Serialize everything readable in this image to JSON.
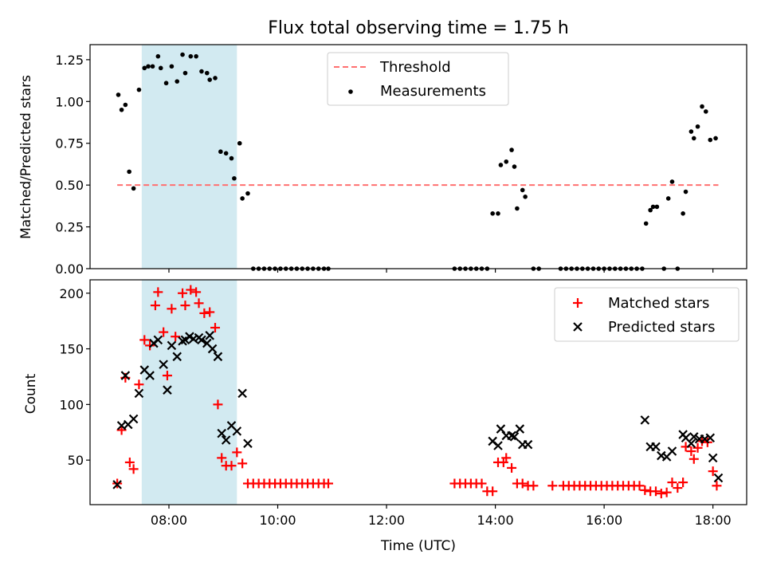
{
  "figure": {
    "title": "Flux total observing time = 1.75 h"
  },
  "colors": {
    "highlight": "#add8e6",
    "threshold": "#ff7070",
    "measurement": "#000000",
    "matched": "#ff0000",
    "predicted": "#000000"
  },
  "chart_data": [
    {
      "type": "scatter",
      "title": "Flux total observing time = 1.75 h",
      "xlabel": "",
      "ylabel": "Matched/Predicted stars",
      "x_unit": "hours UTC",
      "xlim": [
        6.55,
        18.62
      ],
      "ylim": [
        0,
        1.34
      ],
      "x_tick_values": [
        8,
        10,
        12,
        14,
        16,
        18
      ],
      "x_tick_labels": [
        "",
        "",
        "",
        "",
        "",
        ""
      ],
      "y_ticks": [
        0.0,
        0.25,
        0.5,
        0.75,
        1.0,
        1.25
      ],
      "y_tick_labels": [
        "0.00",
        "0.25",
        "0.50",
        "0.75",
        "1.00",
        "1.25"
      ],
      "grid": false,
      "legend": "top-center",
      "highlight_span": [
        7.5,
        9.25
      ],
      "threshold": {
        "name": "Threshold",
        "y": 0.5,
        "x_range": [
          7.05,
          18.1
        ]
      },
      "series": [
        {
          "name": "Measurements",
          "marker": "dot",
          "points": [
            [
              7.07,
              1.04
            ],
            [
              7.13,
              0.95
            ],
            [
              7.2,
              0.98
            ],
            [
              7.27,
              0.58
            ],
            [
              7.35,
              0.48
            ],
            [
              7.45,
              1.07
            ],
            [
              7.55,
              1.2
            ],
            [
              7.62,
              1.21
            ],
            [
              7.7,
              1.21
            ],
            [
              7.8,
              1.27
            ],
            [
              7.85,
              1.2
            ],
            [
              7.95,
              1.11
            ],
            [
              8.05,
              1.21
            ],
            [
              8.15,
              1.12
            ],
            [
              8.25,
              1.28
            ],
            [
              8.3,
              1.17
            ],
            [
              8.4,
              1.27
            ],
            [
              8.5,
              1.27
            ],
            [
              8.6,
              1.18
            ],
            [
              8.7,
              1.17
            ],
            [
              8.75,
              1.13
            ],
            [
              8.85,
              1.14
            ],
            [
              8.95,
              0.7
            ],
            [
              9.05,
              0.69
            ],
            [
              9.15,
              0.66
            ],
            [
              9.2,
              0.54
            ],
            [
              9.3,
              0.75
            ],
            [
              9.35,
              0.42
            ],
            [
              9.45,
              0.45
            ],
            [
              9.55,
              0.0
            ],
            [
              9.65,
              0.0
            ],
            [
              9.75,
              0.0
            ],
            [
              9.85,
              0.0
            ],
            [
              9.95,
              0.0
            ],
            [
              10.05,
              0.0
            ],
            [
              10.15,
              0.0
            ],
            [
              10.25,
              0.0
            ],
            [
              10.35,
              0.0
            ],
            [
              10.45,
              0.0
            ],
            [
              10.55,
              0.0
            ],
            [
              10.65,
              0.0
            ],
            [
              10.75,
              0.0
            ],
            [
              10.85,
              0.0
            ],
            [
              10.93,
              0.0
            ],
            [
              13.25,
              0.0
            ],
            [
              13.35,
              0.0
            ],
            [
              13.45,
              0.0
            ],
            [
              13.55,
              0.0
            ],
            [
              13.65,
              0.0
            ],
            [
              13.75,
              0.0
            ],
            [
              13.85,
              0.0
            ],
            [
              13.95,
              0.33
            ],
            [
              14.05,
              0.33
            ],
            [
              14.1,
              0.62
            ],
            [
              14.2,
              0.64
            ],
            [
              14.3,
              0.71
            ],
            [
              14.35,
              0.61
            ],
            [
              14.4,
              0.36
            ],
            [
              14.5,
              0.47
            ],
            [
              14.55,
              0.43
            ],
            [
              14.7,
              0.0
            ],
            [
              14.8,
              0.0
            ],
            [
              15.2,
              0.0
            ],
            [
              15.3,
              0.0
            ],
            [
              15.4,
              0.0
            ],
            [
              15.5,
              0.0
            ],
            [
              15.6,
              0.0
            ],
            [
              15.7,
              0.0
            ],
            [
              15.8,
              0.0
            ],
            [
              15.9,
              0.0
            ],
            [
              16.0,
              0.0
            ],
            [
              16.1,
              0.0
            ],
            [
              16.2,
              0.0
            ],
            [
              16.3,
              0.0
            ],
            [
              16.4,
              0.0
            ],
            [
              16.5,
              0.0
            ],
            [
              16.6,
              0.0
            ],
            [
              16.7,
              0.0
            ],
            [
              16.77,
              0.27
            ],
            [
              16.85,
              0.35
            ],
            [
              16.9,
              0.37
            ],
            [
              16.97,
              0.37
            ],
            [
              17.1,
              0.0
            ],
            [
              17.18,
              0.42
            ],
            [
              17.25,
              0.52
            ],
            [
              17.35,
              0.0
            ],
            [
              17.45,
              0.33
            ],
            [
              17.5,
              0.46
            ],
            [
              17.6,
              0.82
            ],
            [
              17.65,
              0.78
            ],
            [
              17.72,
              0.85
            ],
            [
              17.8,
              0.97
            ],
            [
              17.87,
              0.94
            ],
            [
              17.95,
              0.77
            ],
            [
              18.05,
              0.78
            ]
          ]
        }
      ]
    },
    {
      "type": "scatter",
      "title": "",
      "xlabel": "Time (UTC)",
      "ylabel": "Count",
      "x_unit": "hours UTC",
      "xlim": [
        6.55,
        18.62
      ],
      "ylim": [
        10,
        212
      ],
      "x_tick_values": [
        8,
        10,
        12,
        14,
        16,
        18
      ],
      "x_tick_labels": [
        "08:00",
        "10:00",
        "12:00",
        "14:00",
        "16:00",
        "18:00"
      ],
      "y_ticks": [
        50,
        100,
        150,
        200
      ],
      "y_tick_labels": [
        "50",
        "100",
        "150",
        "200"
      ],
      "grid": false,
      "legend": "top-right",
      "highlight_span": [
        7.5,
        9.25
      ],
      "series": [
        {
          "name": "Matched stars",
          "marker": "plus",
          "points": [
            [
              7.05,
              29
            ],
            [
              7.13,
              77
            ],
            [
              7.2,
              124
            ],
            [
              7.28,
              48
            ],
            [
              7.35,
              42
            ],
            [
              7.45,
              118
            ],
            [
              7.55,
              158
            ],
            [
              7.65,
              153
            ],
            [
              7.75,
              189
            ],
            [
              7.8,
              201
            ],
            [
              7.9,
              165
            ],
            [
              7.97,
              126
            ],
            [
              8.05,
              186
            ],
            [
              8.12,
              161
            ],
            [
              8.25,
              200
            ],
            [
              8.3,
              189
            ],
            [
              8.4,
              203
            ],
            [
              8.5,
              201
            ],
            [
              8.55,
              191
            ],
            [
              8.65,
              182
            ],
            [
              8.75,
              183
            ],
            [
              8.85,
              169
            ],
            [
              8.9,
              100
            ],
            [
              8.97,
              52
            ],
            [
              9.05,
              45
            ],
            [
              9.15,
              45
            ],
            [
              9.25,
              57
            ],
            [
              9.35,
              47
            ],
            [
              9.45,
              29
            ],
            [
              9.55,
              29
            ],
            [
              9.65,
              29
            ],
            [
              9.75,
              29
            ],
            [
              9.85,
              29
            ],
            [
              9.95,
              29
            ],
            [
              10.05,
              29
            ],
            [
              10.15,
              29
            ],
            [
              10.25,
              29
            ],
            [
              10.35,
              29
            ],
            [
              10.45,
              29
            ],
            [
              10.55,
              29
            ],
            [
              10.65,
              29
            ],
            [
              10.75,
              29
            ],
            [
              10.85,
              29
            ],
            [
              10.93,
              29
            ],
            [
              13.25,
              29
            ],
            [
              13.35,
              29
            ],
            [
              13.45,
              29
            ],
            [
              13.55,
              29
            ],
            [
              13.65,
              29
            ],
            [
              13.75,
              29
            ],
            [
              13.85,
              22
            ],
            [
              13.95,
              22
            ],
            [
              14.05,
              48
            ],
            [
              14.15,
              48
            ],
            [
              14.2,
              52
            ],
            [
              14.3,
              43
            ],
            [
              14.4,
              29
            ],
            [
              14.5,
              29
            ],
            [
              14.6,
              27
            ],
            [
              14.7,
              27
            ],
            [
              15.05,
              27
            ],
            [
              15.25,
              27
            ],
            [
              15.35,
              27
            ],
            [
              15.45,
              27
            ],
            [
              15.55,
              27
            ],
            [
              15.65,
              27
            ],
            [
              15.75,
              27
            ],
            [
              15.85,
              27
            ],
            [
              15.95,
              27
            ],
            [
              16.05,
              27
            ],
            [
              16.15,
              27
            ],
            [
              16.25,
              27
            ],
            [
              16.35,
              27
            ],
            [
              16.45,
              27
            ],
            [
              16.55,
              27
            ],
            [
              16.65,
              27
            ],
            [
              16.75,
              23
            ],
            [
              16.85,
              22
            ],
            [
              16.95,
              22
            ],
            [
              17.05,
              20
            ],
            [
              17.15,
              21
            ],
            [
              17.25,
              30
            ],
            [
              17.35,
              25
            ],
            [
              17.45,
              30
            ],
            [
              17.5,
              62
            ],
            [
              17.6,
              58
            ],
            [
              17.65,
              51
            ],
            [
              17.72,
              61
            ],
            [
              17.8,
              67
            ],
            [
              17.9,
              66
            ],
            [
              18.0,
              40
            ],
            [
              18.07,
              27
            ]
          ]
        },
        {
          "name": "Predicted stars",
          "marker": "cross",
          "points": [
            [
              7.05,
              28
            ],
            [
              7.13,
              81
            ],
            [
              7.2,
              126
            ],
            [
              7.25,
              82
            ],
            [
              7.35,
              87
            ],
            [
              7.45,
              110
            ],
            [
              7.55,
              131
            ],
            [
              7.65,
              126
            ],
            [
              7.72,
              155
            ],
            [
              7.8,
              158
            ],
            [
              7.9,
              136
            ],
            [
              7.97,
              113
            ],
            [
              8.05,
              153
            ],
            [
              8.15,
              143
            ],
            [
              8.25,
              157
            ],
            [
              8.3,
              158
            ],
            [
              8.38,
              161
            ],
            [
              8.45,
              159
            ],
            [
              8.55,
              160
            ],
            [
              8.6,
              158
            ],
            [
              8.7,
              155
            ],
            [
              8.75,
              162
            ],
            [
              8.8,
              150
            ],
            [
              8.9,
              143
            ],
            [
              8.97,
              74
            ],
            [
              9.05,
              68
            ],
            [
              9.15,
              81
            ],
            [
              9.25,
              76
            ],
            [
              9.35,
              110
            ],
            [
              9.45,
              65
            ],
            [
              13.95,
              67
            ],
            [
              14.05,
              63
            ],
            [
              14.1,
              78
            ],
            [
              14.2,
              72
            ],
            [
              14.3,
              72
            ],
            [
              14.35,
              71
            ],
            [
              14.45,
              78
            ],
            [
              14.5,
              64
            ],
            [
              14.6,
              64
            ],
            [
              16.75,
              86
            ],
            [
              16.85,
              62
            ],
            [
              16.95,
              62
            ],
            [
              17.05,
              54
            ],
            [
              17.15,
              53
            ],
            [
              17.25,
              58
            ],
            [
              17.45,
              73
            ],
            [
              17.5,
              70
            ],
            [
              17.6,
              65
            ],
            [
              17.65,
              71
            ],
            [
              17.75,
              69
            ],
            [
              17.85,
              69
            ],
            [
              17.95,
              70
            ],
            [
              18.0,
              52
            ],
            [
              18.1,
              34
            ]
          ]
        }
      ]
    }
  ]
}
